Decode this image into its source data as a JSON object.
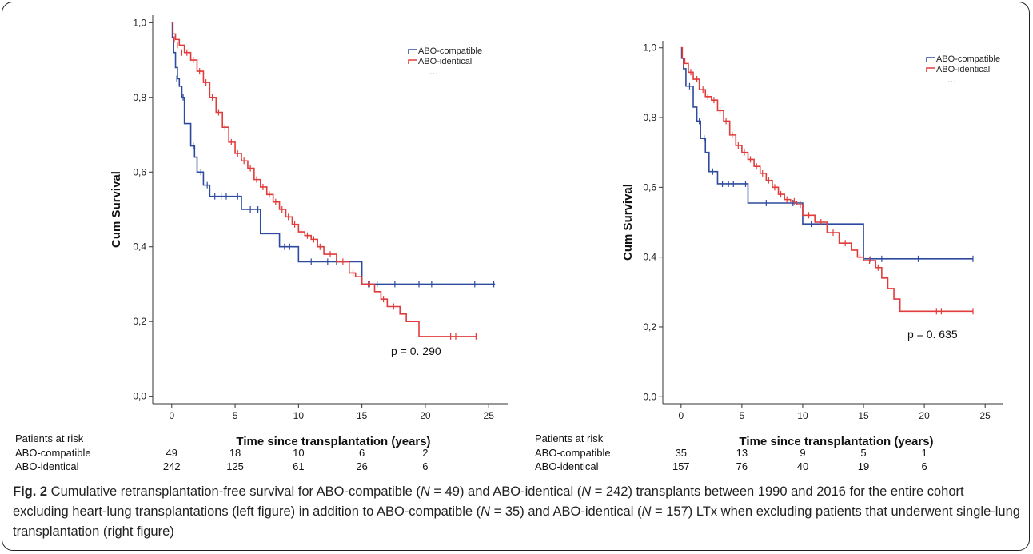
{
  "chart_data": [
    {
      "type": "line",
      "title": "",
      "xlabel": "Time since transplantation (years)",
      "ylabel": "Cum Survival",
      "xlim": [
        -1.5,
        26.5
      ],
      "ylim": [
        -0.02,
        1.02
      ],
      "xticks": [
        0,
        5,
        10,
        15,
        20,
        25
      ],
      "xtick_labels": [
        "0",
        "5",
        "10",
        "15",
        "20",
        "25"
      ],
      "yticks": [
        0,
        0.2,
        0.4,
        0.6,
        0.8,
        1.0
      ],
      "ytick_labels": [
        "0,0",
        "0,2",
        "0,4",
        "0,6",
        "0,8",
        "1,0"
      ],
      "legend_position": "top-right",
      "legend_extra": "…",
      "annotation": "p = 0. 290",
      "risk_table": {
        "header": "Patients at risk",
        "x": [
          0,
          5,
          10,
          15,
          20
        ],
        "rows": [
          {
            "label": "ABO-compatible",
            "values": [
              "49",
              "18",
              "10",
              "6",
              "2"
            ]
          },
          {
            "label": "ABO-identical",
            "values": [
              "242",
              "125",
              "61",
              "26",
              "6"
            ]
          }
        ]
      },
      "series": [
        {
          "name": "ABO-compatible",
          "color": "#2e4a9e",
          "steps": [
            [
              0,
              1.0
            ],
            [
              0.05,
              0.96
            ],
            [
              0.15,
              0.92
            ],
            [
              0.3,
              0.88
            ],
            [
              0.45,
              0.85
            ],
            [
              0.6,
              0.83
            ],
            [
              0.8,
              0.8
            ],
            [
              1.0,
              0.73
            ],
            [
              1.5,
              0.67
            ],
            [
              1.8,
              0.64
            ],
            [
              2.0,
              0.6
            ],
            [
              2.5,
              0.565
            ],
            [
              3.0,
              0.535
            ],
            [
              5.5,
              0.5
            ],
            [
              7.0,
              0.435
            ],
            [
              8.5,
              0.4
            ],
            [
              10.0,
              0.36
            ],
            [
              15.0,
              0.3
            ],
            [
              25.5,
              0.3
            ]
          ],
          "censors": [
            [
              0.4,
              0.85
            ],
            [
              0.9,
              0.8
            ],
            [
              1.7,
              0.67
            ],
            [
              2.3,
              0.6
            ],
            [
              2.8,
              0.565
            ],
            [
              3.4,
              0.535
            ],
            [
              3.9,
              0.535
            ],
            [
              4.3,
              0.535
            ],
            [
              5.2,
              0.535
            ],
            [
              6.2,
              0.5
            ],
            [
              6.8,
              0.5
            ],
            [
              8.9,
              0.4
            ],
            [
              9.3,
              0.4
            ],
            [
              11.0,
              0.36
            ],
            [
              12.3,
              0.36
            ],
            [
              13.0,
              0.36
            ],
            [
              15.6,
              0.3
            ],
            [
              16.2,
              0.3
            ],
            [
              17.6,
              0.3
            ],
            [
              19.5,
              0.3
            ],
            [
              20.5,
              0.3
            ],
            [
              23.9,
              0.3
            ],
            [
              25.4,
              0.3
            ]
          ]
        },
        {
          "name": "ABO-identical",
          "color": "#e23b3b",
          "steps": [
            [
              0,
              1.0
            ],
            [
              0.1,
              0.97
            ],
            [
              0.3,
              0.955
            ],
            [
              0.6,
              0.94
            ],
            [
              1.0,
              0.92
            ],
            [
              1.5,
              0.9
            ],
            [
              2.0,
              0.87
            ],
            [
              2.5,
              0.84
            ],
            [
              3.0,
              0.8
            ],
            [
              3.5,
              0.76
            ],
            [
              4.0,
              0.72
            ],
            [
              4.5,
              0.68
            ],
            [
              5.0,
              0.65
            ],
            [
              5.5,
              0.63
            ],
            [
              6.0,
              0.61
            ],
            [
              6.5,
              0.58
            ],
            [
              7.0,
              0.56
            ],
            [
              7.5,
              0.54
            ],
            [
              8.0,
              0.52
            ],
            [
              8.5,
              0.5
            ],
            [
              9.0,
              0.48
            ],
            [
              9.5,
              0.46
            ],
            [
              10.0,
              0.44
            ],
            [
              10.5,
              0.43
            ],
            [
              11.0,
              0.42
            ],
            [
              11.5,
              0.4
            ],
            [
              12.0,
              0.38
            ],
            [
              13.0,
              0.36
            ],
            [
              14.0,
              0.33
            ],
            [
              14.5,
              0.32
            ],
            [
              15.0,
              0.3
            ],
            [
              16.0,
              0.28
            ],
            [
              16.5,
              0.26
            ],
            [
              17.0,
              0.24
            ],
            [
              18.0,
              0.22
            ],
            [
              18.5,
              0.2
            ],
            [
              19.5,
              0.16
            ],
            [
              24.0,
              0.16
            ]
          ],
          "censors": [
            [
              0.2,
              0.955
            ],
            [
              0.45,
              0.94
            ],
            [
              0.8,
              0.92
            ],
            [
              1.2,
              0.92
            ],
            [
              1.7,
              0.9
            ],
            [
              2.2,
              0.87
            ],
            [
              2.7,
              0.84
            ],
            [
              3.2,
              0.8
            ],
            [
              3.7,
              0.76
            ],
            [
              4.2,
              0.72
            ],
            [
              4.7,
              0.68
            ],
            [
              5.2,
              0.65
            ],
            [
              5.7,
              0.63
            ],
            [
              6.2,
              0.61
            ],
            [
              6.7,
              0.58
            ],
            [
              7.2,
              0.56
            ],
            [
              7.7,
              0.54
            ],
            [
              8.2,
              0.52
            ],
            [
              8.7,
              0.5
            ],
            [
              9.2,
              0.48
            ],
            [
              9.7,
              0.46
            ],
            [
              10.2,
              0.44
            ],
            [
              10.7,
              0.43
            ],
            [
              11.2,
              0.42
            ],
            [
              11.7,
              0.4
            ],
            [
              12.5,
              0.38
            ],
            [
              13.5,
              0.36
            ],
            [
              14.3,
              0.33
            ],
            [
              15.5,
              0.3
            ],
            [
              16.7,
              0.26
            ],
            [
              17.5,
              0.24
            ],
            [
              22.0,
              0.16
            ],
            [
              22.4,
              0.16
            ],
            [
              24.0,
              0.16
            ]
          ]
        }
      ]
    },
    {
      "type": "line",
      "title": "",
      "xlabel": "Time since transplantation (years)",
      "ylabel": "Cum Survival",
      "xlim": [
        -1.5,
        26.5
      ],
      "ylim": [
        -0.02,
        1.02
      ],
      "xticks": [
        0,
        5,
        10,
        15,
        20,
        25
      ],
      "xtick_labels": [
        "0",
        "5",
        "10",
        "15",
        "20",
        "25"
      ],
      "yticks": [
        0,
        0.2,
        0.4,
        0.6,
        0.8,
        1.0
      ],
      "ytick_labels": [
        "0,0",
        "0,2",
        "0,4",
        "0,6",
        "0,8",
        "1,0"
      ],
      "legend_position": "top-right",
      "legend_extra": "…",
      "annotation": "p = 0. 635",
      "risk_table": {
        "header": "Patients at risk",
        "x": [
          0,
          5,
          10,
          15,
          20
        ],
        "rows": [
          {
            "label": "ABO-compatible",
            "values": [
              "35",
              "13",
              "9",
              "5",
              "1"
            ]
          },
          {
            "label": "ABO-identical",
            "values": [
              "157",
              "76",
              "40",
              "19",
              "6"
            ]
          }
        ]
      },
      "series": [
        {
          "name": "ABO-compatible",
          "color": "#2e4a9e",
          "steps": [
            [
              0,
              1.0
            ],
            [
              0.05,
              0.97
            ],
            [
              0.2,
              0.94
            ],
            [
              0.4,
              0.89
            ],
            [
              1.0,
              0.83
            ],
            [
              1.3,
              0.79
            ],
            [
              1.6,
              0.74
            ],
            [
              2.0,
              0.7
            ],
            [
              2.3,
              0.645
            ],
            [
              3.0,
              0.61
            ],
            [
              5.5,
              0.555
            ],
            [
              10.0,
              0.495
            ],
            [
              15.0,
              0.395
            ],
            [
              24.0,
              0.395
            ]
          ],
          "censors": [
            [
              0.7,
              0.89
            ],
            [
              1.5,
              0.79
            ],
            [
              1.9,
              0.74
            ],
            [
              2.6,
              0.645
            ],
            [
              3.4,
              0.61
            ],
            [
              3.9,
              0.61
            ],
            [
              4.3,
              0.61
            ],
            [
              5.3,
              0.61
            ],
            [
              7.0,
              0.555
            ],
            [
              9.2,
              0.555
            ],
            [
              10.7,
              0.495
            ],
            [
              15.6,
              0.395
            ],
            [
              16.5,
              0.395
            ],
            [
              19.5,
              0.395
            ],
            [
              24.0,
              0.395
            ]
          ]
        },
        {
          "name": "ABO-identical",
          "color": "#e23b3b",
          "steps": [
            [
              0,
              1.0
            ],
            [
              0.1,
              0.97
            ],
            [
              0.3,
              0.955
            ],
            [
              0.6,
              0.93
            ],
            [
              1.0,
              0.91
            ],
            [
              1.5,
              0.88
            ],
            [
              2.0,
              0.86
            ],
            [
              2.5,
              0.85
            ],
            [
              3.0,
              0.82
            ],
            [
              3.5,
              0.79
            ],
            [
              4.0,
              0.75
            ],
            [
              4.5,
              0.72
            ],
            [
              5.0,
              0.7
            ],
            [
              5.5,
              0.68
            ],
            [
              6.0,
              0.66
            ],
            [
              6.5,
              0.64
            ],
            [
              7.0,
              0.62
            ],
            [
              7.5,
              0.6
            ],
            [
              8.0,
              0.58
            ],
            [
              8.5,
              0.565
            ],
            [
              9.0,
              0.56
            ],
            [
              9.5,
              0.55
            ],
            [
              10.0,
              0.52
            ],
            [
              11.0,
              0.5
            ],
            [
              12.0,
              0.47
            ],
            [
              13.0,
              0.44
            ],
            [
              14.0,
              0.42
            ],
            [
              14.5,
              0.4
            ],
            [
              15.0,
              0.39
            ],
            [
              16.0,
              0.37
            ],
            [
              16.5,
              0.34
            ],
            [
              17.0,
              0.31
            ],
            [
              17.5,
              0.28
            ],
            [
              18.0,
              0.245
            ],
            [
              24.0,
              0.245
            ]
          ],
          "censors": [
            [
              0.2,
              0.955
            ],
            [
              0.8,
              0.93
            ],
            [
              1.3,
              0.91
            ],
            [
              1.8,
              0.88
            ],
            [
              2.2,
              0.86
            ],
            [
              2.7,
              0.85
            ],
            [
              3.2,
              0.82
            ],
            [
              3.7,
              0.79
            ],
            [
              4.2,
              0.75
            ],
            [
              4.7,
              0.72
            ],
            [
              5.2,
              0.7
            ],
            [
              5.7,
              0.68
            ],
            [
              6.2,
              0.66
            ],
            [
              6.7,
              0.64
            ],
            [
              7.2,
              0.62
            ],
            [
              7.7,
              0.6
            ],
            [
              8.2,
              0.58
            ],
            [
              8.7,
              0.565
            ],
            [
              9.3,
              0.56
            ],
            [
              9.8,
              0.55
            ],
            [
              10.5,
              0.52
            ],
            [
              11.5,
              0.5
            ],
            [
              12.5,
              0.47
            ],
            [
              13.5,
              0.44
            ],
            [
              14.7,
              0.4
            ],
            [
              15.5,
              0.39
            ],
            [
              16.2,
              0.37
            ],
            [
              21.0,
              0.245
            ],
            [
              21.4,
              0.245
            ],
            [
              24.0,
              0.245
            ]
          ]
        }
      ]
    }
  ],
  "caption": {
    "label": "Fig. 2",
    "segments": [
      " Cumulative retransplantation-free survival for ABO-compatible (",
      "N",
      " = 49) and ABO-identical (",
      "N",
      " = 242) transplants between 1990 and 2016 for the entire cohort excluding heart-lung transplantations (left figure) in addition to ABO-compatible (",
      "N",
      " = 35) and ABO-identical (",
      "N",
      " = 157) LTx when excluding patients that underwent single-lung transplantation (right figure)"
    ]
  }
}
